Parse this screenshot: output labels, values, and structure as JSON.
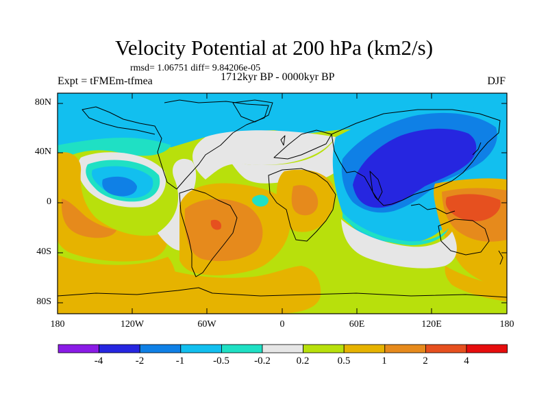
{
  "header": {
    "title": "Velocity Potential at 200 hPa (km2/s)",
    "stats": "rmsd= 1.06751  diff= 9.84206e-05",
    "experiment": "Expt = tFMEm-tfmea",
    "period": "1712kyr BP - 0000kyr BP",
    "season": "DJF"
  },
  "axes": {
    "lat_labels": [
      "80N",
      "40N",
      "0",
      "40S",
      "80S"
    ],
    "lon_labels": [
      "180",
      "120W",
      "60W",
      "0",
      "60E",
      "120E",
      "180"
    ]
  },
  "colorbar": {
    "labels": [
      "-4",
      "-2",
      "-1",
      "-0.5",
      "-0.2",
      "0.2",
      "0.5",
      "1",
      "2",
      "4"
    ],
    "colors": [
      "#8a1be6",
      "#2626e0",
      "#0f80e6",
      "#12bfef",
      "#1fe0c4",
      "#e6e6e6",
      "#b8e00c",
      "#e6b300",
      "#e68a1c",
      "#e6501f",
      "#e60d0d"
    ]
  },
  "map_colors": {
    "ocean_base": "#b8e00c",
    "neg_strong": "#2626e0",
    "neg_mid": "#0f80e6",
    "neg_light": "#12bfef",
    "neg_faint": "#1fe0c4",
    "neutral": "#e6e6e6",
    "pos_light": "#e6b300",
    "pos_mid": "#e68a1c",
    "pos_strong": "#e6501f"
  }
}
